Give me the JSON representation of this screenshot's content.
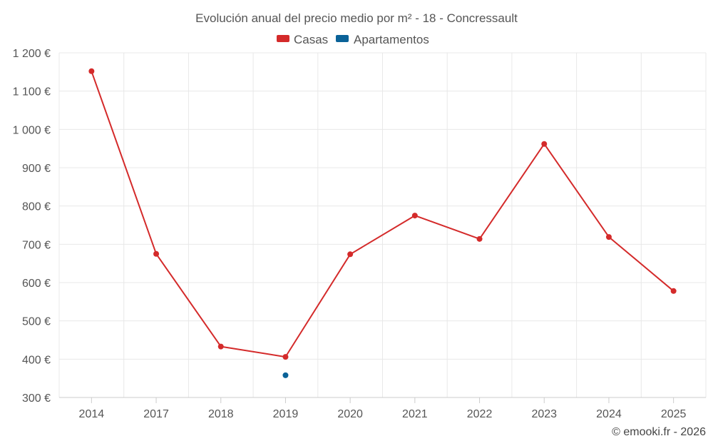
{
  "chart_data": {
    "type": "line",
    "title": "Evolución anual del precio medio por m² - 18 - Concressault",
    "categories": [
      "2014",
      "2017",
      "2018",
      "2019",
      "2020",
      "2021",
      "2022",
      "2023",
      "2024",
      "2025"
    ],
    "series": [
      {
        "name": "Casas",
        "color": "#d42a2a",
        "values": [
          1152,
          675,
          433,
          406,
          674,
          775,
          714,
          962,
          719,
          578
        ]
      },
      {
        "name": "Apartamentos",
        "color": "#0a6298",
        "values": [
          null,
          null,
          null,
          358,
          null,
          null,
          null,
          null,
          null,
          null
        ]
      }
    ],
    "ylim": [
      300,
      1200
    ],
    "yticks": [
      300,
      400,
      500,
      600,
      700,
      800,
      900,
      1000,
      1100,
      1200
    ],
    "ytick_labels": [
      "300 €",
      "400 €",
      "500 €",
      "600 €",
      "700 €",
      "800 €",
      "900 €",
      "1 000 €",
      "1 100 €",
      "1 200 €"
    ],
    "xlabel": "",
    "ylabel": "",
    "grid": true,
    "legend_position": "top-center"
  },
  "credit": "© emooki.fr - 2026"
}
